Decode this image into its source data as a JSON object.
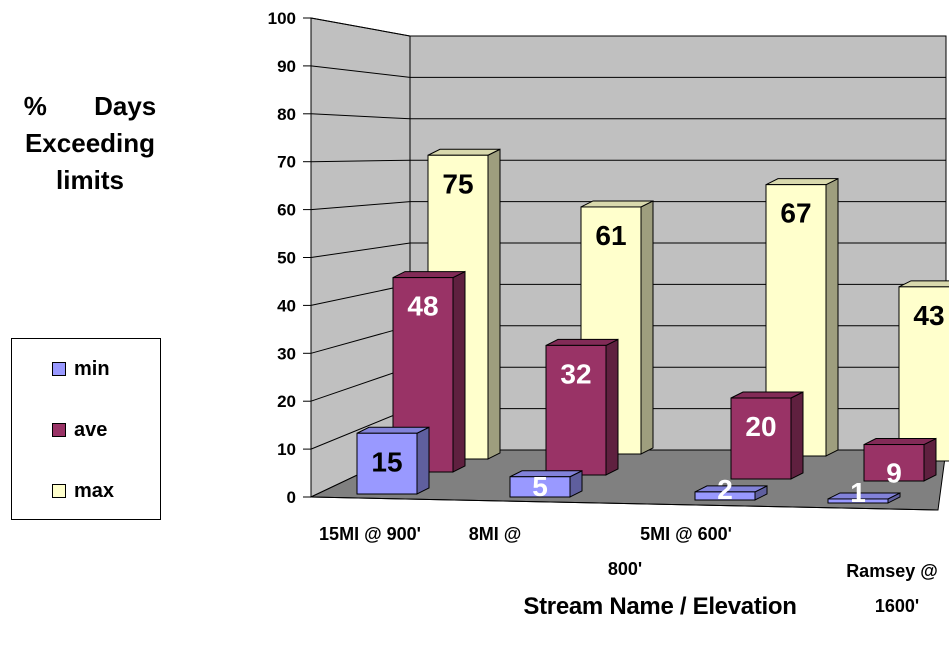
{
  "chart_data": {
    "type": "bar",
    "style": "3d-clustered",
    "ylabel_lines": [
      "% Days",
      "Exceeding",
      "limits"
    ],
    "xlabel": "Stream Name / Elevation",
    "ylim": [
      0,
      100
    ],
    "yticks": [
      "0",
      "10",
      "20",
      "30",
      "40",
      "50",
      "60",
      "70",
      "80",
      "90",
      "100"
    ],
    "categories": [
      "15MI @ 900'",
      "8MI @ 800'",
      "5MI @ 600'",
      "Ramsey @ 1600'"
    ],
    "category_label_lines": [
      [
        "15MI @ 900'"
      ],
      [
        "8MI @",
        "800'"
      ],
      [
        "5MI @ 600'"
      ],
      [
        "Ramsey @",
        "1600'"
      ]
    ],
    "series": [
      {
        "name": "min",
        "values": [
          15,
          5,
          2,
          1
        ],
        "color": "#9999ff",
        "label_color": "#000000"
      },
      {
        "name": "ave",
        "values": [
          48,
          32,
          20,
          9
        ],
        "color": "#993366",
        "label_color": "#ffffff"
      },
      {
        "name": "max",
        "values": [
          75,
          61,
          67,
          43
        ],
        "color": "#ffffcc",
        "label_color": "#000000"
      }
    ],
    "data_label_colors": {
      "min": [
        "#000000",
        "#ffffff",
        "#ffffff",
        "#ffffff"
      ],
      "ave": [
        "#ffffff",
        "#ffffff",
        "#ffffff",
        "#ffffff"
      ],
      "max": [
        "#000000",
        "#000000",
        "#000000",
        "#000000"
      ]
    },
    "wall_color": "#c0c0c0",
    "floor_color": "#808080",
    "grid": true,
    "legend_position": "left"
  }
}
